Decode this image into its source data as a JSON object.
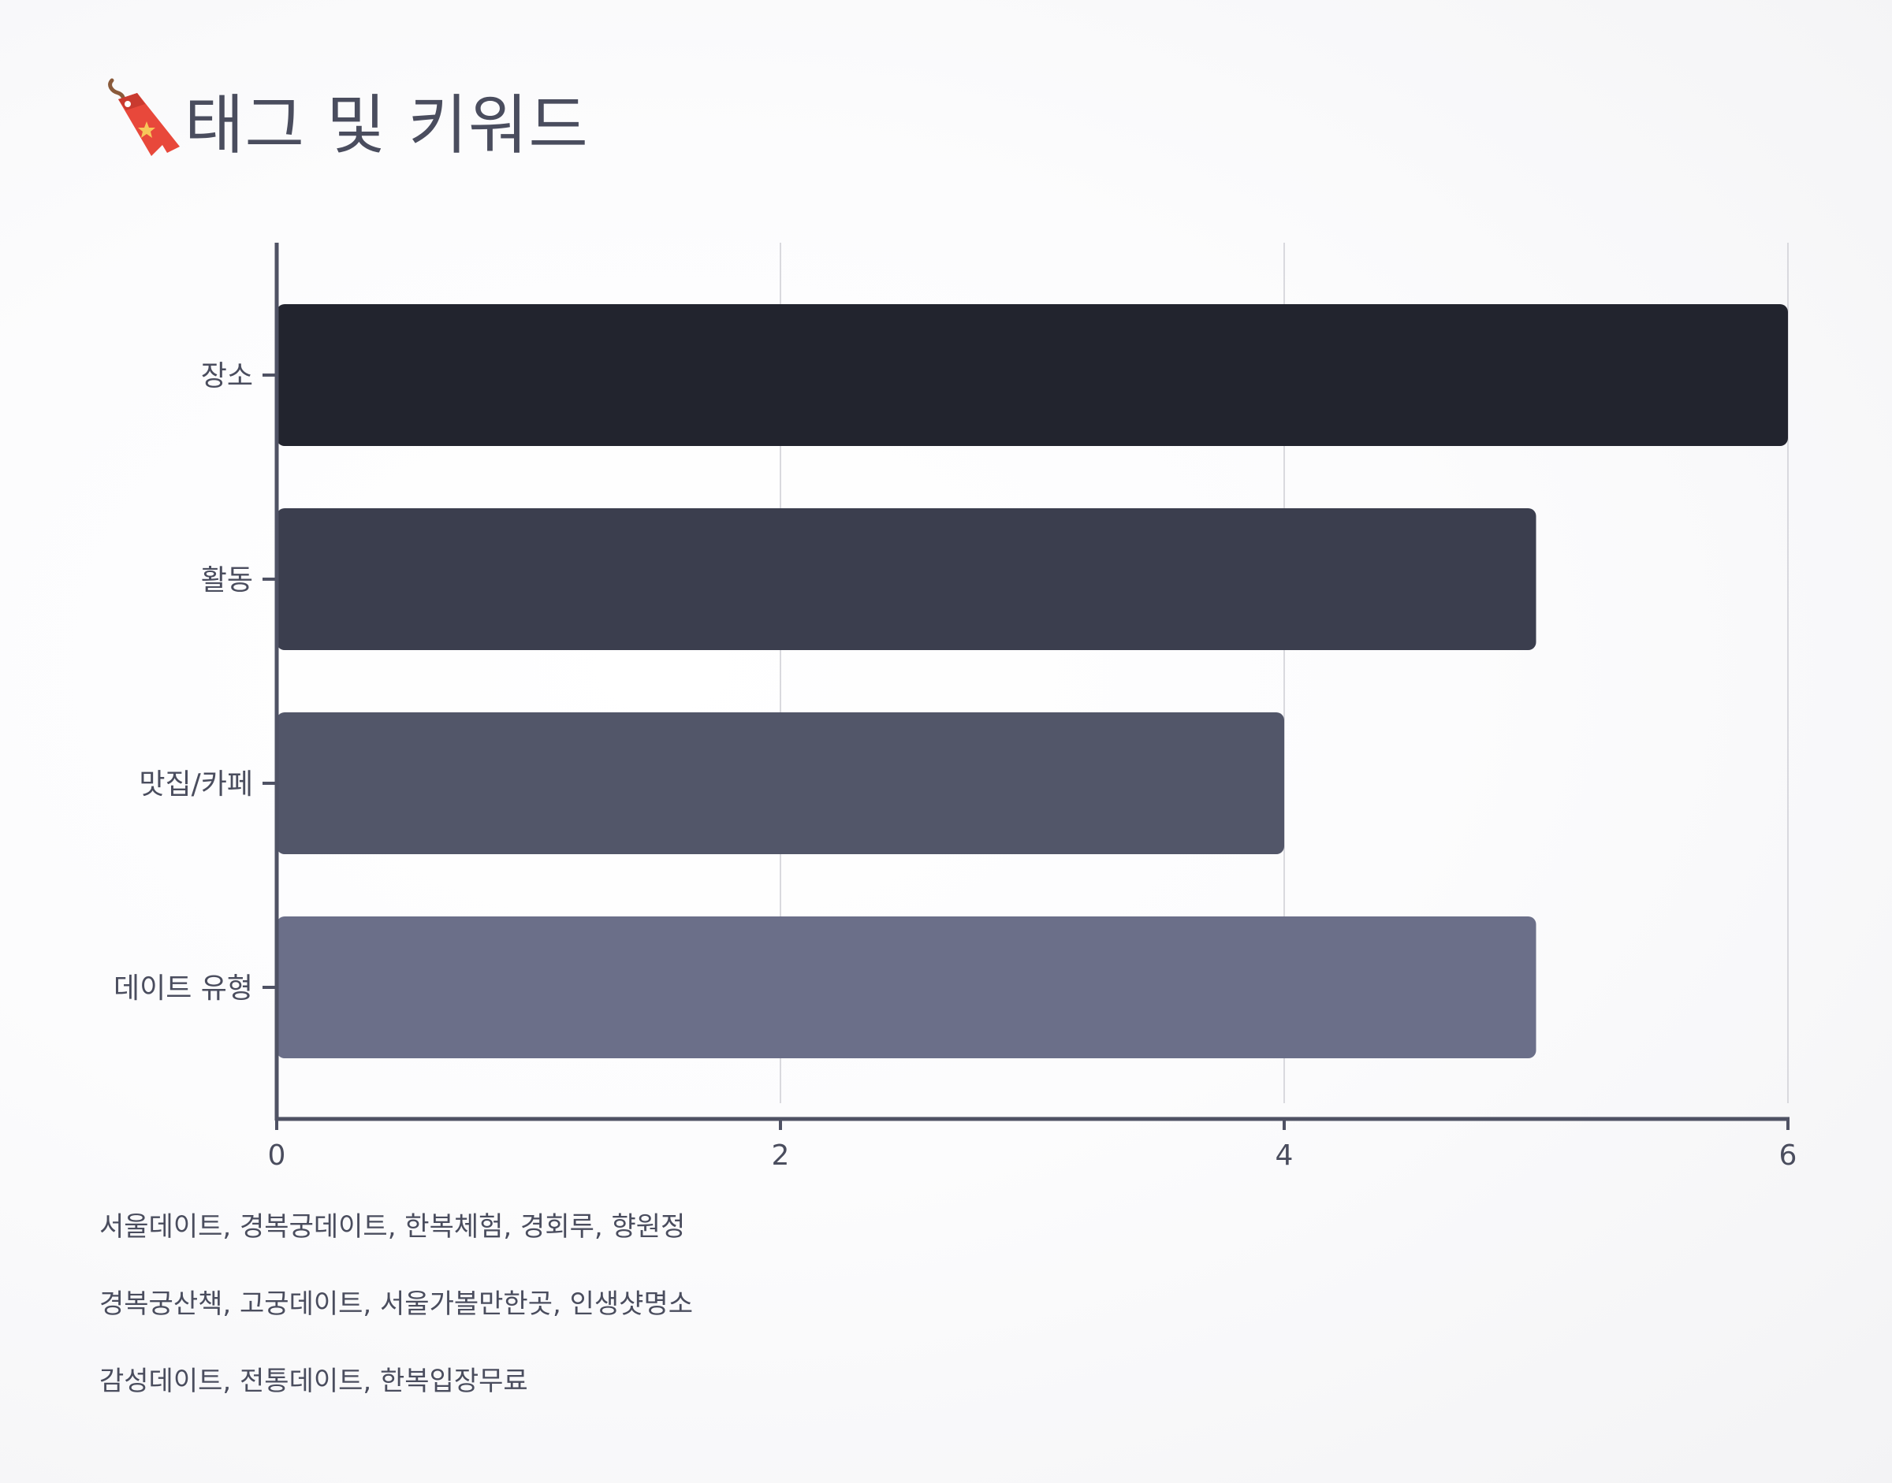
{
  "header": {
    "title": "태그 및 키워드",
    "icon": "bookmark-tag-icon"
  },
  "chart_data": {
    "type": "bar",
    "orientation": "horizontal",
    "categories": [
      "장소",
      "활동",
      "맛집/카페",
      "데이트 유형"
    ],
    "values": [
      6,
      5,
      4,
      5
    ],
    "colors": [
      "#22242e",
      "#3b3e4e",
      "#525669",
      "#6b6f89"
    ],
    "xlim": [
      0,
      6
    ],
    "xticks": [
      "0",
      "2",
      "4",
      "6"
    ],
    "grid": true,
    "title": "",
    "xlabel": "",
    "ylabel": ""
  },
  "keywords": [
    "서울데이트, 경복궁데이트, 한복체험, 경회루, 향원정",
    "경복궁산책, 고궁데이트, 서울가볼만한곳, 인생샷명소",
    "감성데이트, 전통데이트, 한복입장무료"
  ]
}
